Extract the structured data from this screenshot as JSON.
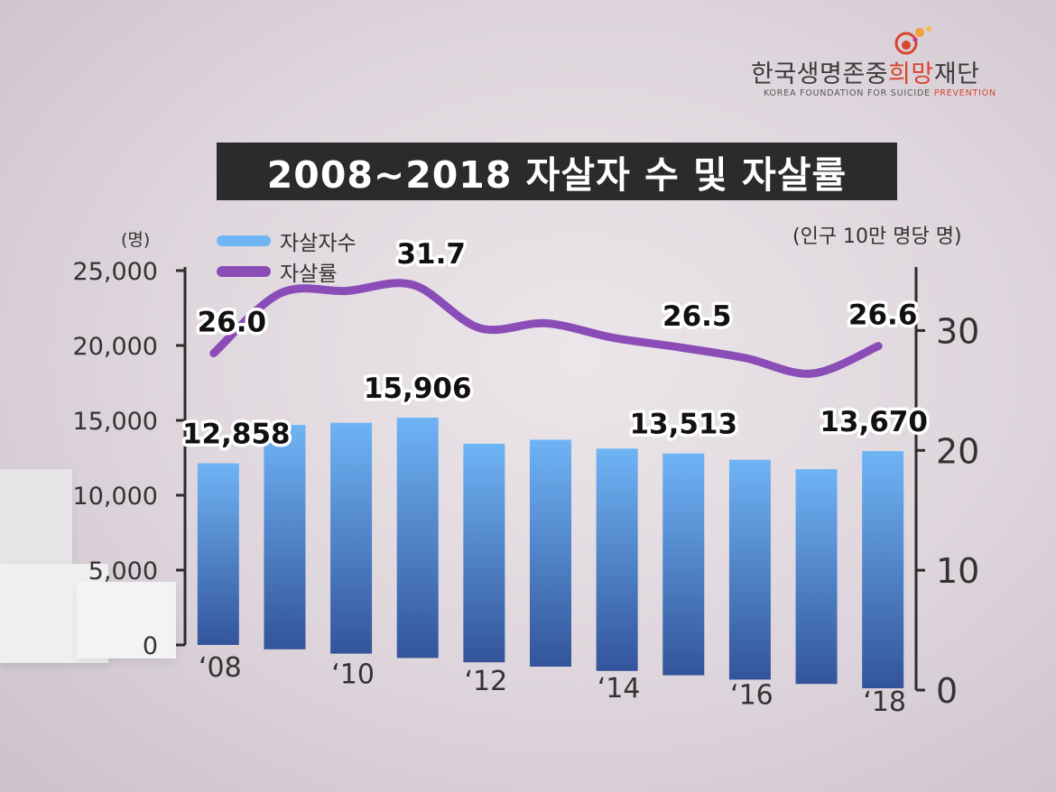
{
  "logo": {
    "name_ko_pre": "한국생명존중",
    "name_ko_accent": "희망",
    "name_ko_post": "재단",
    "name_en_pre": "KOREA FOUNDATION FOR SUICIDE ",
    "name_en_accent": "PREVENTION"
  },
  "colors": {
    "bar_top": "#6fb4f5",
    "bar_bottom": "#33549b",
    "line": "#8a4db8",
    "logo_accent": "#d8452f",
    "title_bg": "#2b2a2c"
  },
  "chart_data": {
    "type": "bar",
    "title": "2008~2018 자살자 수 및 자살률",
    "left_unit": "(명)",
    "right_unit": "(인구 10만 명당 명)",
    "x": [
      "2008",
      "2009",
      "2010",
      "2011",
      "2012",
      "2013",
      "2014",
      "2015",
      "2016",
      "2017",
      "2018"
    ],
    "x_tick_labels": [
      "‘08",
      "‘10",
      "‘12",
      "‘14",
      "‘16",
      "‘18"
    ],
    "y_left": {
      "lim": [
        0,
        25000
      ],
      "ticks": [
        "0",
        "5,000",
        "10,000",
        "15,000",
        "20,000",
        "25,000"
      ]
    },
    "y_right": {
      "lim": [
        0,
        35
      ],
      "ticks": [
        "0",
        "10",
        "20",
        "30"
      ]
    },
    "series": [
      {
        "name": "자살자수",
        "type": "bar",
        "axis": "left",
        "values": [
          12858,
          15413,
          15566,
          15906,
          14160,
          14427,
          13836,
          13513,
          13092,
          12463,
          13670
        ]
      },
      {
        "name": "자살률",
        "type": "line",
        "axis": "right",
        "values": [
          26.0,
          31.0,
          31.2,
          31.7,
          28.1,
          28.5,
          27.3,
          26.5,
          25.6,
          24.3,
          26.6
        ]
      }
    ],
    "bar_labels": [
      {
        "index": 0,
        "text": "12,858"
      },
      {
        "index": 3,
        "text": "15,906"
      },
      {
        "index": 7,
        "text": "13,513"
      },
      {
        "index": 10,
        "text": "13,670"
      }
    ],
    "line_labels": [
      {
        "index": 0,
        "text": "26.0"
      },
      {
        "index": 3,
        "text": "31.7"
      },
      {
        "index": 7,
        "text": "26.5"
      },
      {
        "index": 10,
        "text": "26.6"
      }
    ],
    "legend_position": "top-left"
  }
}
